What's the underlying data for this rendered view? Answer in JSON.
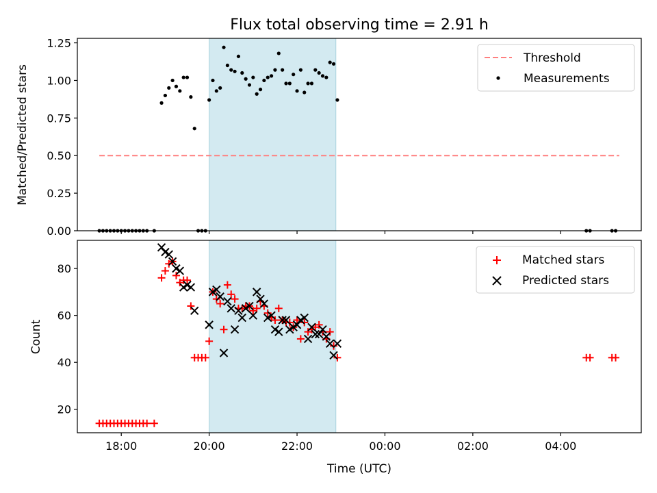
{
  "chart_data": [
    {
      "type": "scatter",
      "title": "Flux total observing time = 2.91 h",
      "xlabel": "",
      "ylabel": "Matched/Predicted stars",
      "xlim": [
        "17:00",
        "05:50"
      ],
      "ylim": [
        0,
        1.28
      ],
      "yticks": [
        "0.00",
        "0.25",
        "0.50",
        "0.75",
        "1.00",
        "1.25"
      ],
      "highlight_span": {
        "from": "20:00",
        "to": "22:53",
        "color": "#d3eaf1"
      },
      "threshold": {
        "name": "Threshold",
        "value": 0.5,
        "from": "17:30",
        "to": "05:20",
        "color": "#ff7f7f",
        "style": "dashed"
      },
      "series": [
        {
          "name": "Measurements",
          "color": "#000000",
          "marker": "dot",
          "x": [
            "17:30",
            "17:35",
            "17:40",
            "17:45",
            "17:50",
            "17:55",
            "18:00",
            "18:05",
            "18:10",
            "18:15",
            "18:20",
            "18:25",
            "18:30",
            "18:35",
            "18:45",
            "18:55",
            "19:00",
            "19:05",
            "19:10",
            "19:15",
            "19:20",
            "19:25",
            "19:30",
            "19:35",
            "19:40",
            "19:45",
            "19:50",
            "19:55",
            "20:00",
            "20:05",
            "20:10",
            "20:15",
            "20:20",
            "20:25",
            "20:30",
            "20:35",
            "20:40",
            "20:45",
            "20:50",
            "20:55",
            "21:00",
            "21:05",
            "21:10",
            "21:15",
            "21:20",
            "21:25",
            "21:30",
            "21:35",
            "21:40",
            "21:45",
            "21:50",
            "21:55",
            "22:00",
            "22:05",
            "22:10",
            "22:15",
            "22:20",
            "22:25",
            "22:30",
            "22:35",
            "22:40",
            "22:45",
            "22:50",
            "22:55",
            "04:35",
            "04:40",
            "05:10",
            "05:15"
          ],
          "y": [
            0,
            0,
            0,
            0,
            0,
            0,
            0,
            0,
            0,
            0,
            0,
            0,
            0,
            0,
            0,
            0.85,
            0.9,
            0.95,
            1.0,
            0.96,
            0.93,
            1.02,
            1.02,
            0.89,
            0.68,
            0,
            0,
            0,
            0.87,
            1.0,
            0.93,
            0.95,
            1.22,
            1.1,
            1.07,
            1.06,
            1.16,
            1.05,
            1.01,
            0.97,
            1.02,
            0.91,
            0.94,
            1.0,
            1.02,
            1.03,
            1.07,
            1.18,
            1.07,
            0.98,
            0.98,
            1.04,
            0.93,
            1.07,
            0.92,
            0.98,
            0.98,
            1.07,
            1.05,
            1.03,
            1.02,
            1.12,
            1.11,
            0.87,
            0,
            0,
            0,
            0
          ]
        }
      ],
      "legend": {
        "placement": "top-right",
        "entries": [
          "Threshold",
          "Measurements"
        ]
      }
    },
    {
      "type": "scatter",
      "title": "",
      "xlabel": "Time (UTC)",
      "ylabel": "Count",
      "xlim": [
        "17:00",
        "05:50"
      ],
      "ylim": [
        10,
        92
      ],
      "yticks": [
        "20",
        "40",
        "60",
        "80"
      ],
      "xticks": [
        "18:00",
        "20:00",
        "22:00",
        "00:00",
        "02:00",
        "04:00"
      ],
      "highlight_span": {
        "from": "20:00",
        "to": "22:53",
        "color": "#d3eaf1"
      },
      "series": [
        {
          "name": "Matched stars",
          "color": "#ff0000",
          "marker": "plus",
          "x": [
            "17:30",
            "17:35",
            "17:40",
            "17:45",
            "17:50",
            "17:55",
            "18:00",
            "18:05",
            "18:10",
            "18:15",
            "18:20",
            "18:25",
            "18:30",
            "18:35",
            "18:45",
            "18:55",
            "19:00",
            "19:05",
            "19:10",
            "19:15",
            "19:20",
            "19:25",
            "19:30",
            "19:35",
            "19:40",
            "19:45",
            "19:50",
            "19:55",
            "20:00",
            "20:05",
            "20:10",
            "20:15",
            "20:20",
            "20:25",
            "20:30",
            "20:35",
            "20:40",
            "20:45",
            "20:50",
            "20:55",
            "21:00",
            "21:05",
            "21:10",
            "21:15",
            "21:20",
            "21:25",
            "21:30",
            "21:35",
            "21:40",
            "21:45",
            "21:50",
            "21:55",
            "22:00",
            "22:05",
            "22:10",
            "22:15",
            "22:20",
            "22:25",
            "22:30",
            "22:35",
            "22:40",
            "22:45",
            "22:50",
            "22:55",
            "04:35",
            "04:40",
            "05:10",
            "05:15"
          ],
          "y": [
            14,
            14,
            14,
            14,
            14,
            14,
            14,
            14,
            14,
            14,
            14,
            14,
            14,
            14,
            14,
            76,
            79,
            82,
            83,
            77,
            74,
            75,
            75,
            64,
            42,
            42,
            42,
            42,
            49,
            70,
            67,
            65,
            54,
            73,
            69,
            67,
            63,
            63,
            64,
            64,
            62,
            63,
            66,
            64,
            61,
            59,
            58,
            63,
            58,
            57,
            57,
            55,
            58,
            50,
            57,
            53,
            54,
            55,
            56,
            53,
            50,
            53,
            47,
            42,
            42,
            42,
            42,
            42
          ]
        },
        {
          "name": "Predicted stars",
          "color": "#000000",
          "marker": "x",
          "x": [
            "18:55",
            "19:00",
            "19:05",
            "19:10",
            "19:15",
            "19:20",
            "19:25",
            "19:30",
            "19:35",
            "19:40",
            "20:00",
            "20:05",
            "20:10",
            "20:15",
            "20:20",
            "20:25",
            "20:30",
            "20:35",
            "20:40",
            "20:45",
            "20:50",
            "20:55",
            "21:00",
            "21:05",
            "21:10",
            "21:15",
            "21:20",
            "21:25",
            "21:30",
            "21:35",
            "21:40",
            "21:45",
            "21:50",
            "21:55",
            "22:00",
            "22:05",
            "22:10",
            "22:15",
            "22:20",
            "22:25",
            "22:30",
            "22:35",
            "22:40",
            "22:45",
            "22:50",
            "22:55"
          ],
          "y": [
            89,
            87,
            86,
            83,
            80,
            79,
            72,
            73,
            72,
            62,
            56,
            70,
            71,
            68,
            44,
            66,
            63,
            54,
            62,
            59,
            63,
            64,
            60,
            70,
            67,
            65,
            59,
            60,
            54,
            53,
            58,
            58,
            54,
            55,
            56,
            58,
            59,
            50,
            55,
            52,
            52,
            54,
            51,
            48,
            43,
            48
          ]
        }
      ],
      "legend": {
        "placement": "top-right",
        "entries": [
          "Matched stars",
          "Predicted stars"
        ]
      }
    }
  ]
}
